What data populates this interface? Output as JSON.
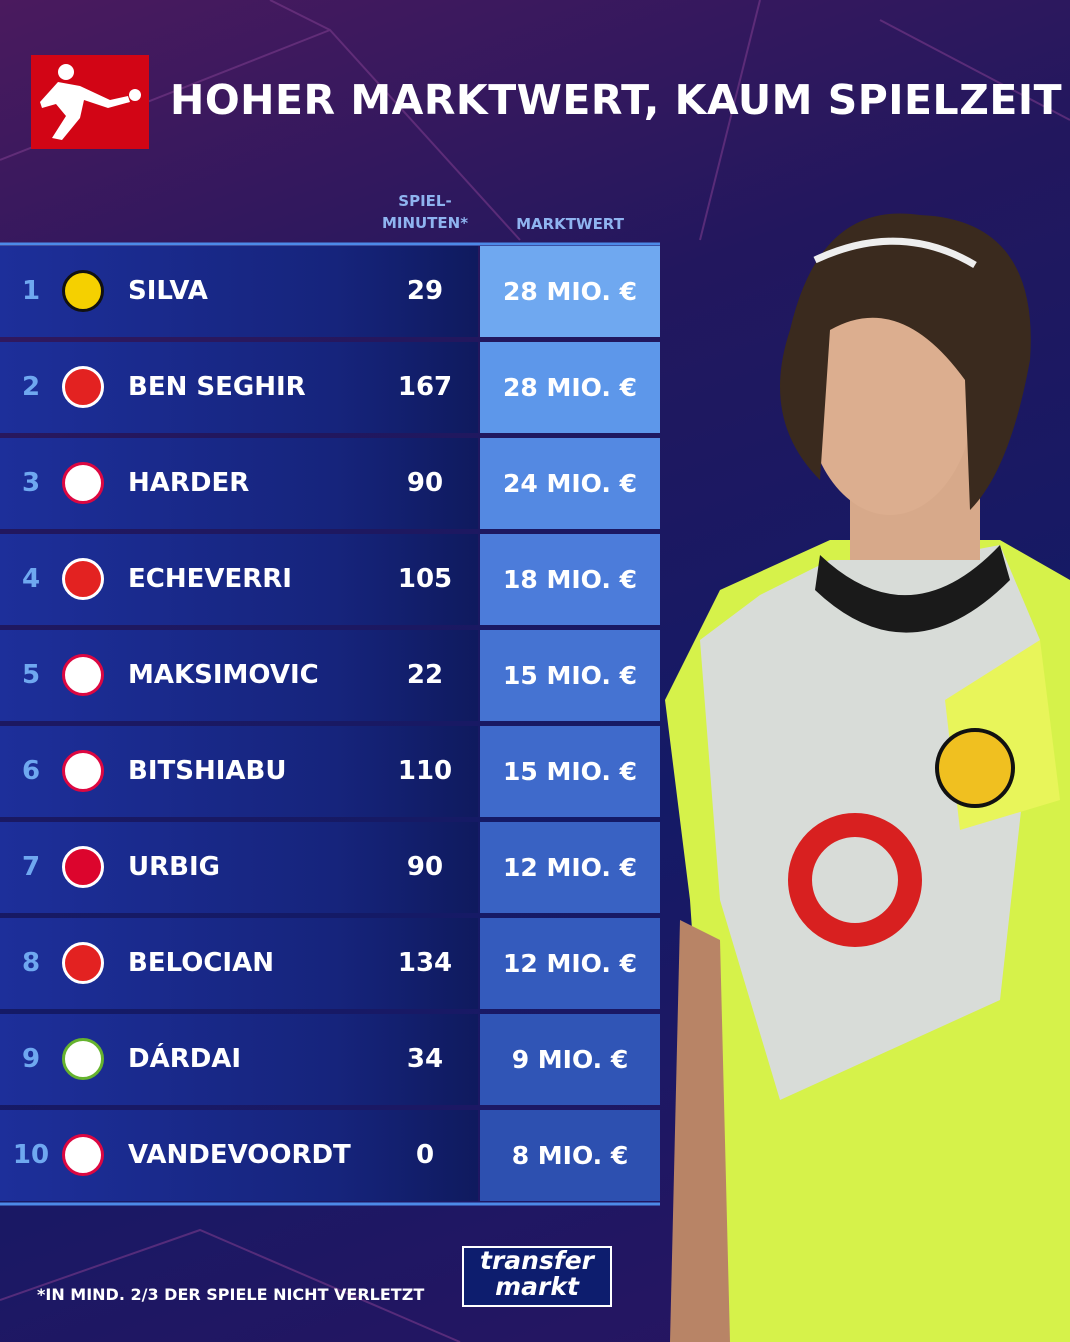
{
  "header": {
    "title": "HOHER MARKTWERT, KAUM SPIELZEIT"
  },
  "table": {
    "columns": {
      "minutes": [
        "SPIEL-",
        "MINUTEN*"
      ],
      "value": "MARKTWERT"
    },
    "rows": [
      {
        "rank": 1,
        "name": "SILVA",
        "minutes": 29,
        "value": "28 MIO. €"
      },
      {
        "rank": 2,
        "name": "BEN SEGHIR",
        "minutes": 167,
        "value": "28 MIO. €"
      },
      {
        "rank": 3,
        "name": "HARDER",
        "minutes": 90,
        "value": "24 MIO. €"
      },
      {
        "rank": 4,
        "name": "ECHEVERRI",
        "minutes": 105,
        "value": "18 MIO. €"
      },
      {
        "rank": 5,
        "name": "MAKSIMOVIC",
        "minutes": 22,
        "value": "15 MIO. €"
      },
      {
        "rank": 6,
        "name": "BITSHIABU",
        "minutes": 110,
        "value": "15 MIO. €"
      },
      {
        "rank": 7,
        "name": "URBIG",
        "minutes": 90,
        "value": "12 MIO. €"
      },
      {
        "rank": 8,
        "name": "BELOCIAN",
        "minutes": 134,
        "value": "12 MIO. €"
      },
      {
        "rank": 9,
        "name": "DÁRDAI",
        "minutes": 34,
        "value": "9 MIO. €"
      },
      {
        "rank": 10,
        "name": "VANDEVOORDT",
        "minutes": 0,
        "value": "8 MIO. €"
      }
    ]
  },
  "footer": {
    "note": "*IN MIND. 2/3 DER SPIELE NICHT VERLETZT",
    "brand": [
      "transfer",
      "markt"
    ]
  }
}
